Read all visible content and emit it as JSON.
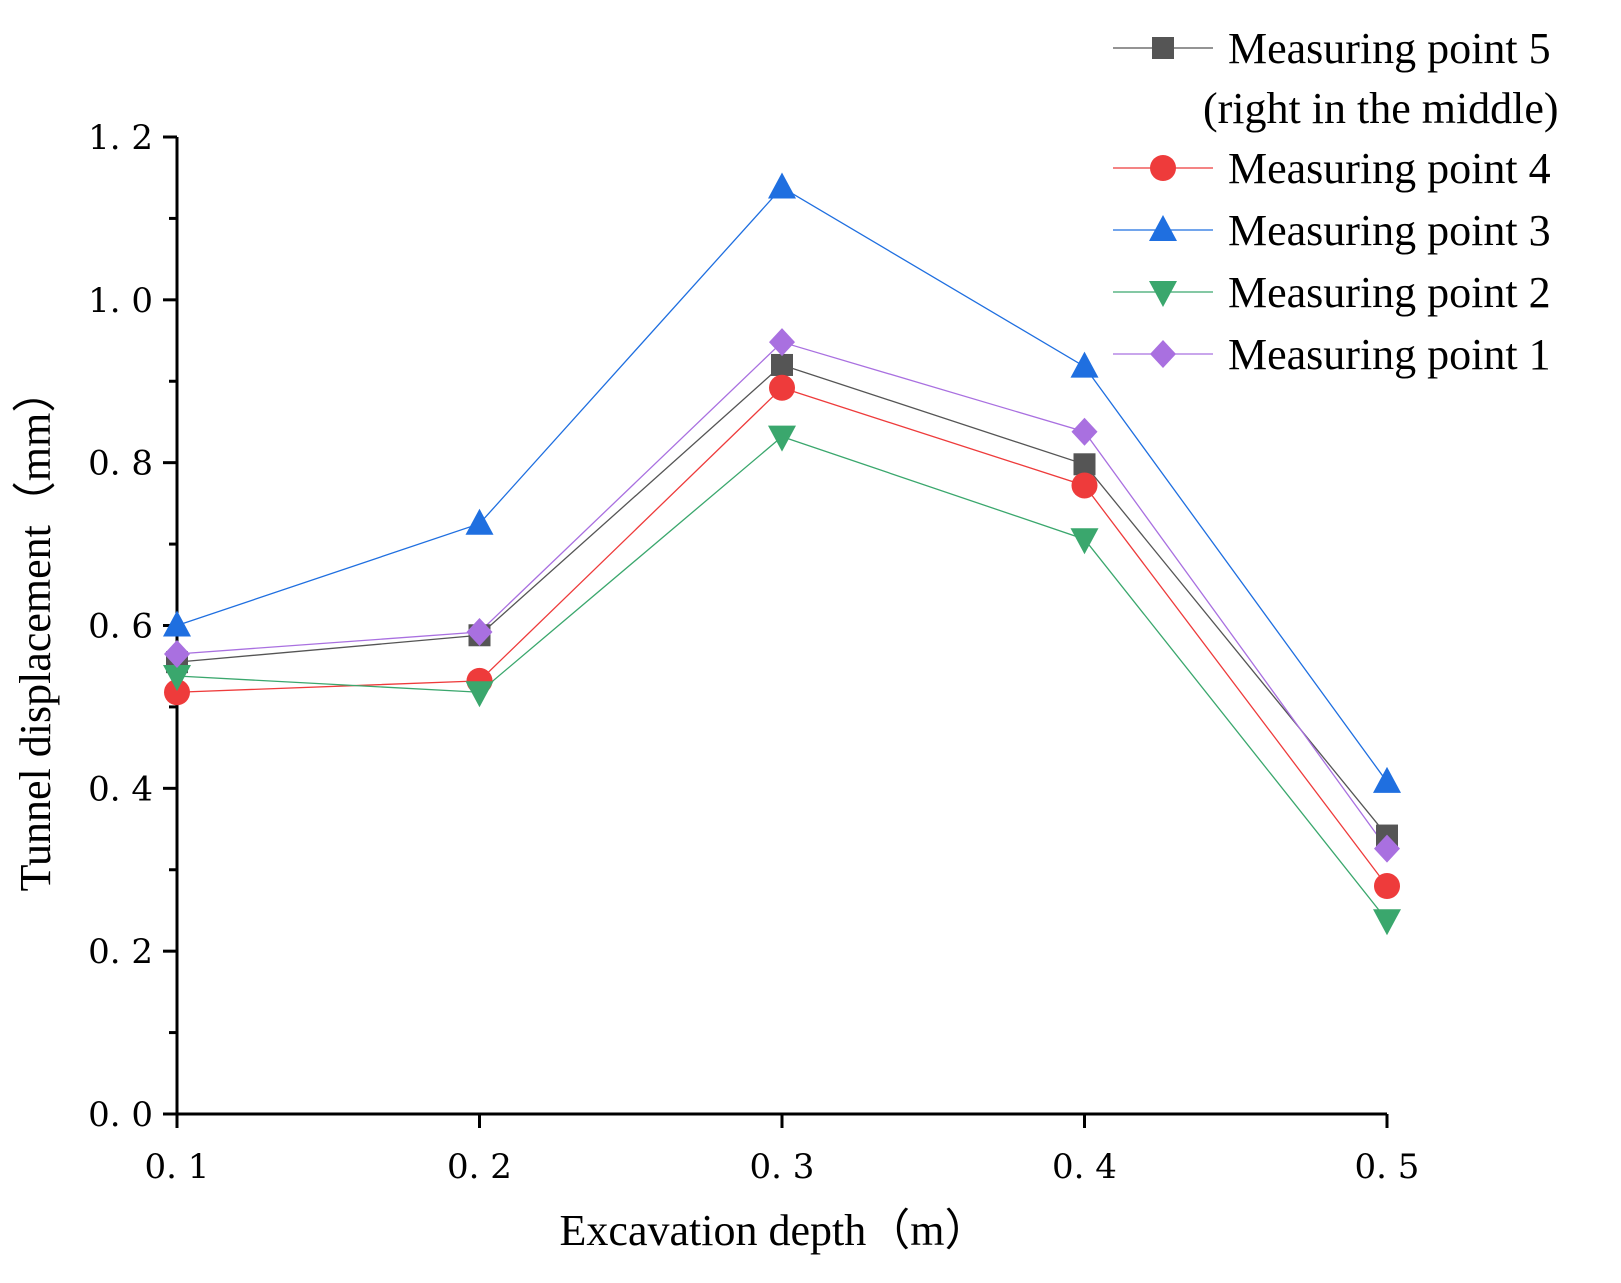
{
  "chart_data": {
    "type": "line",
    "xlabel": "Excavation depth（m）",
    "ylabel": "Tunnel displacement（mm）",
    "x": [
      0.1,
      0.2,
      0.3,
      0.4,
      0.5
    ],
    "x_tick_labels": [
      "0. 1",
      "0. 2",
      "0. 3",
      "0. 4",
      "0. 5"
    ],
    "xlim": [
      0.1,
      0.5
    ],
    "ylim": [
      0.0,
      1.2
    ],
    "y_ticks": [
      0.0,
      0.2,
      0.4,
      0.6,
      0.8,
      1.0,
      1.2
    ],
    "y_tick_labels": [
      "0. 0",
      "0. 2",
      "0. 4",
      "0. 6",
      "0. 8",
      "1. 0",
      "1. 2"
    ],
    "grid": false,
    "legend_position": "top-right",
    "series": [
      {
        "name": "Measuring point 5",
        "name_line2": "(right in the middle)",
        "marker": "square",
        "color": "#555555",
        "line_color": "#555555",
        "values": [
          0.555,
          0.588,
          0.92,
          0.798,
          0.342
        ]
      },
      {
        "name": "Measuring point 4",
        "marker": "circle",
        "color": "#ee3b3b",
        "line_color": "#ee3b3b",
        "values": [
          0.518,
          0.532,
          0.892,
          0.772,
          0.28
        ]
      },
      {
        "name": "Measuring point 3",
        "marker": "triangle-up",
        "color": "#1f6fe0",
        "line_color": "#1f6fe0",
        "values": [
          0.6,
          0.725,
          1.138,
          0.918,
          0.408
        ]
      },
      {
        "name": "Measuring point 2",
        "marker": "triangle-down",
        "color": "#3aa76d",
        "line_color": "#3aa76d",
        "values": [
          0.538,
          0.518,
          0.832,
          0.706,
          0.238
        ]
      },
      {
        "name": "Measuring point 1",
        "marker": "diamond",
        "color": "#a970e0",
        "line_color": "#a970e0",
        "values": [
          0.565,
          0.592,
          0.948,
          0.838,
          0.326
        ]
      }
    ]
  }
}
